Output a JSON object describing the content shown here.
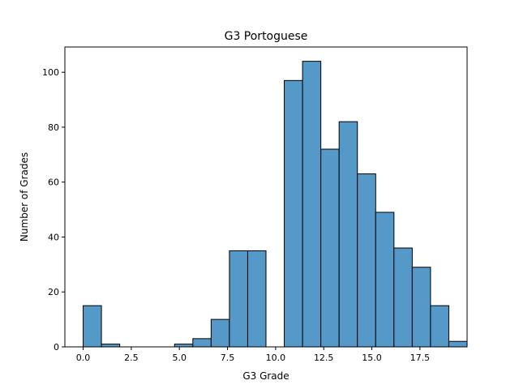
{
  "chart_data": {
    "type": "bar",
    "title": "G3 Portoguese",
    "xlabel": "G3 Grade",
    "ylabel": "Number of Grades",
    "xlim": [
      -0.95,
      19.95
    ],
    "ylim": [
      0,
      109.2
    ],
    "bin_width": 0.95,
    "bin_start": 0,
    "values": [
      15,
      1,
      0,
      0,
      0,
      1,
      3,
      10,
      35,
      35,
      0,
      97,
      104,
      72,
      82,
      63,
      49,
      36,
      29,
      15,
      2
    ],
    "x_ticks": [
      0.0,
      2.5,
      5.0,
      7.5,
      10.0,
      12.5,
      15.0,
      17.5
    ],
    "x_tick_labels": [
      "0.0",
      "2.5",
      "5.0",
      "7.5",
      "10.0",
      "12.5",
      "15.0",
      "17.5"
    ],
    "y_ticks": [
      0,
      20,
      40,
      60,
      80,
      100
    ],
    "y_tick_labels": [
      "0",
      "20",
      "40",
      "60",
      "80",
      "100"
    ],
    "grid": false,
    "legend": "none",
    "bar_color": "#5599c8",
    "edge_color": "#000000"
  }
}
